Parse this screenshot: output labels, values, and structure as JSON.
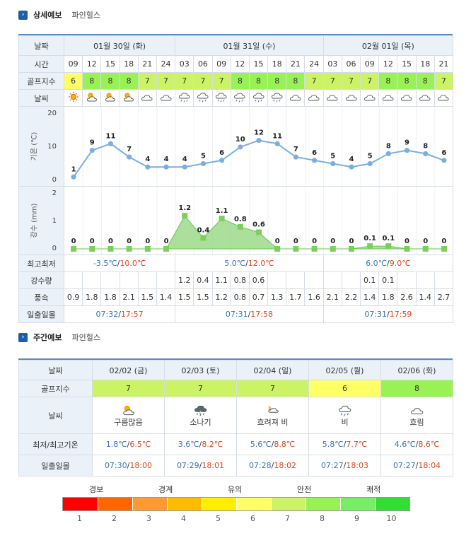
{
  "detail": {
    "title": "상세예보",
    "place": "파인힐스",
    "labels": {
      "date": "날짜",
      "time": "시간",
      "golf": "골프지수",
      "weather": "날씨",
      "temp_axis": "기온 (℃)",
      "rain_axis": "강수 (mm)",
      "minmax": "최고최저",
      "precip": "강수량",
      "wind": "풍속",
      "sun": "일출일몰"
    },
    "days": [
      {
        "label": "01월 30일 (화)",
        "span": 6,
        "min": "-3.5℃",
        "max": "10.0℃",
        "sunrise": "07:32",
        "sunset": "17:57"
      },
      {
        "label": "01월 31일 (수)",
        "span": 8,
        "min": "5.0℃",
        "max": "12.0℃",
        "sunrise": "07:31",
        "sunset": "17:58"
      },
      {
        "label": "02월 01일 (목)",
        "span": 7,
        "min": "6.0℃",
        "max": "9.0℃",
        "sunrise": "07:31",
        "sunset": "17:59"
      }
    ],
    "times": [
      "09",
      "12",
      "15",
      "18",
      "21",
      "24",
      "03",
      "06",
      "09",
      "12",
      "15",
      "18",
      "21",
      "24",
      "03",
      "06",
      "09",
      "12",
      "15",
      "18",
      "21"
    ],
    "golf_index": [
      6,
      8,
      8,
      8,
      7,
      7,
      7,
      7,
      7,
      8,
      8,
      8,
      8,
      7,
      7,
      7,
      7,
      8,
      8,
      8,
      7
    ],
    "weather_icons": [
      "sun-icon",
      "sun-cloud-icon",
      "sun-cloud-icon",
      "sun-cloud-icon",
      "cloud-icon",
      "cloud-icon",
      "rain-icon",
      "rain-icon",
      "rain-icon",
      "rain-icon",
      "rain-icon",
      "rain-icon",
      "cloud-icon",
      "cloud-icon",
      "cloud-icon",
      "cloud-icon",
      "cloud-icon",
      "cloud-icon",
      "cloud-icon",
      "cloud-icon",
      "cloud-icon"
    ],
    "precip": [
      "",
      "",
      "",
      "",
      "",
      "",
      "1.2",
      "0.4",
      "1.1",
      "0.8",
      "0.6",
      "",
      "",
      "",
      "",
      "",
      "0.1",
      "0.1",
      "",
      "",
      ""
    ],
    "wind": [
      "0.9",
      "1.8",
      "1.8",
      "2.1",
      "1.5",
      "1.4",
      "1.5",
      "1.5",
      "1.2",
      "0.8",
      "0.7",
      "1.3",
      "1.7",
      "1.6",
      "2.1",
      "2.2",
      "1.4",
      "1.8",
      "2.6",
      "1.4",
      "2.7"
    ]
  },
  "chart_data": [
    {
      "type": "line",
      "ylabel": "기온 (℃)",
      "ylim": [
        0,
        20
      ],
      "yticks": [
        0,
        10,
        20
      ],
      "x": [
        "09",
        "12",
        "15",
        "18",
        "21",
        "24",
        "03",
        "06",
        "09",
        "12",
        "15",
        "18",
        "21",
        "24",
        "03",
        "06",
        "09",
        "12",
        "15",
        "18",
        "21"
      ],
      "values": [
        1,
        9,
        11,
        7,
        4,
        4,
        4,
        5,
        6,
        10,
        12,
        11,
        7,
        6,
        5,
        4,
        5,
        8,
        9,
        8,
        6
      ],
      "color": "#7aaee0"
    },
    {
      "type": "area",
      "ylabel": "강수 (mm)",
      "ylim": [
        0,
        2
      ],
      "yticks": [
        0,
        1,
        2
      ],
      "x": [
        "09",
        "12",
        "15",
        "18",
        "21",
        "24",
        "03",
        "06",
        "09",
        "12",
        "15",
        "18",
        "21",
        "24",
        "03",
        "06",
        "09",
        "12",
        "15",
        "18",
        "21"
      ],
      "values": [
        0,
        0,
        0,
        0,
        0,
        0,
        1.2,
        0.4,
        1.1,
        0.8,
        0.6,
        0,
        0,
        0,
        0,
        0,
        0.1,
        0.1,
        0,
        0,
        0
      ],
      "color": "#8fd47a"
    }
  ],
  "weekly": {
    "title": "주간예보",
    "place": "파인힐스",
    "labels": {
      "date": "날짜",
      "golf": "골프지수",
      "weather": "날씨",
      "temp": "최저/최고기온",
      "sun": "일출일몰"
    },
    "days": [
      {
        "date": "02/02 (금)",
        "golf": "7",
        "golf_color": "#ccf266",
        "icon": "sun-cloud-icon",
        "weather": "구름많음",
        "min": "1.8℃",
        "max": "6.5℃",
        "sunrise": "07:30",
        "sunset": "18:00"
      },
      {
        "date": "02/03 (토)",
        "golf": "7",
        "golf_color": "#ccf266",
        "icon": "thunder-icon",
        "weather": "소나기",
        "min": "3.6℃",
        "max": "8.2℃",
        "sunrise": "07:29",
        "sunset": "18:01"
      },
      {
        "date": "02/04 (일)",
        "golf": "7",
        "golf_color": "#ccf266",
        "icon": "moon-snow-icon",
        "weather": "흐려져 비",
        "min": "5.6℃",
        "max": "8.8℃",
        "sunrise": "07:28",
        "sunset": "18:02"
      },
      {
        "date": "02/05 (월)",
        "golf": "6",
        "golf_color": "#ffff66",
        "icon": "rain-icon",
        "weather": "비",
        "min": "5.8℃",
        "max": "7.7℃",
        "sunrise": "07:27",
        "sunset": "18:03"
      },
      {
        "date": "02/06 (화)",
        "golf": "8",
        "golf_color": "#99f255",
        "icon": "cloud-icon",
        "weather": "흐림",
        "min": "4.6℃",
        "max": "8.6℃",
        "sunrise": "07:27",
        "sunset": "18:04"
      }
    ]
  },
  "legend": {
    "top_labels": [
      "경보",
      "경계",
      "유의",
      "안전",
      "쾌적"
    ],
    "numbers": [
      "1",
      "2",
      "3",
      "4",
      "5",
      "6",
      "7",
      "8",
      "9",
      "10"
    ],
    "colors": [
      "#ff0000",
      "#ff6600",
      "#ff9933",
      "#ffbb00",
      "#ffee00",
      "#ffff66",
      "#ccf266",
      "#99f255",
      "#77ee66",
      "#33dd33"
    ]
  },
  "golf_colors": {
    "6": "#ffff66",
    "7": "#ccf266",
    "8": "#99f255"
  }
}
